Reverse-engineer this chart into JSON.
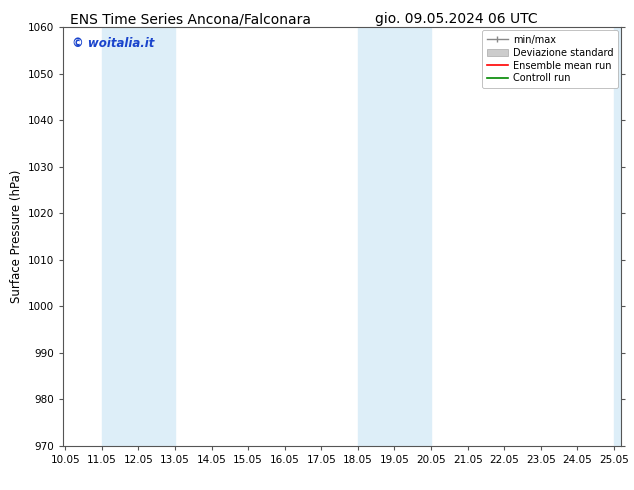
{
  "title_left": "ENS Time Series Ancona/Falconara",
  "title_right": "gio. 09.05.2024 06 UTC",
  "ylabel": "Surface Pressure (hPa)",
  "ylim": [
    970,
    1060
  ],
  "yticks": [
    970,
    980,
    990,
    1000,
    1010,
    1020,
    1030,
    1040,
    1050,
    1060
  ],
  "xlim": [
    10.0,
    25.25
  ],
  "xticks": [
    10.05,
    11.05,
    12.05,
    13.05,
    14.05,
    15.05,
    16.05,
    17.05,
    18.05,
    19.05,
    20.05,
    21.05,
    22.05,
    23.05,
    24.05,
    25.05
  ],
  "xtick_labels": [
    "10.05",
    "11.05",
    "12.05",
    "13.05",
    "14.05",
    "15.05",
    "16.05",
    "17.05",
    "18.05",
    "19.05",
    "20.05",
    "21.05",
    "22.05",
    "23.05",
    "24.05",
    "25.05"
  ],
  "shaded_bands": [
    {
      "xmin": 11.05,
      "xmax": 13.05
    },
    {
      "xmin": 18.05,
      "xmax": 20.05
    },
    {
      "xmin": 25.05,
      "xmax": 25.25
    }
  ],
  "shade_color": "#ddeef8",
  "watermark_text": "© woitalia.it",
  "watermark_color": "#1a44cc",
  "legend_labels": [
    "min/max",
    "Deviazione standard",
    "Ensemble mean run",
    "Controll run"
  ],
  "legend_colors": [
    "#888888",
    "#cccccc",
    "#ff0000",
    "#008800"
  ],
  "bg_color": "#ffffff",
  "grid_color": "#aaaaaa",
  "spine_color": "#555555",
  "tick_fontsize": 7.5,
  "title_fontsize": 10,
  "ylabel_fontsize": 8.5,
  "watermark_fontsize": 8.5
}
